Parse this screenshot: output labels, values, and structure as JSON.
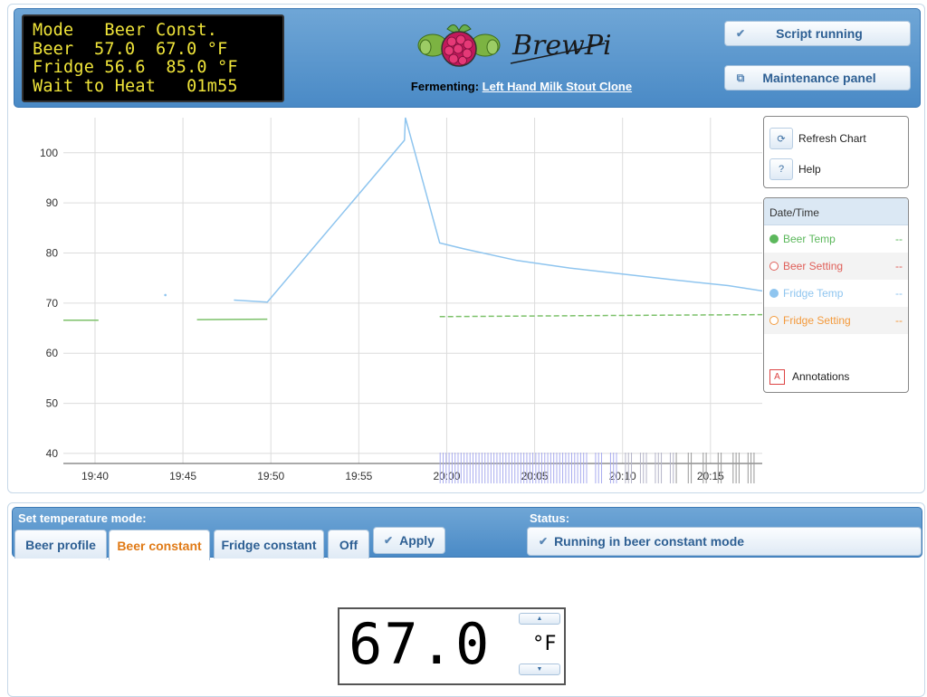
{
  "lcd": {
    "line1": "Mode   Beer Const.",
    "line2": "Beer  57.0  67.0 °F",
    "line3": "Fridge 56.6  85.0 °F",
    "line4": "Wait to Heat   01m55"
  },
  "header": {
    "logo_text": "BrewPi",
    "fermenting_label": "Fermenting:",
    "beer_name": "Left Hand Milk Stout Clone",
    "script_button": "Script running",
    "maintenance_button": "Maintenance panel"
  },
  "chart_controls": {
    "refresh": "Refresh Chart",
    "help": "Help",
    "help_icon": "?"
  },
  "legend": {
    "header": "Date/Time",
    "items": [
      {
        "label": "Beer Temp",
        "value": "--",
        "color": "#5cb85c",
        "filled": true
      },
      {
        "label": "Beer Setting",
        "value": "--",
        "color": "#e0605a",
        "filled": false
      },
      {
        "label": "Fridge Temp",
        "value": "--",
        "color": "#8fc5ef",
        "filled": true
      },
      {
        "label": "Fridge Setting",
        "value": "--",
        "color": "#f39a3c",
        "filled": false
      }
    ],
    "annotations": "Annotations",
    "annotations_icon": "A"
  },
  "chart_data": {
    "type": "line",
    "x_ticks": [
      "19:40",
      "19:45",
      "19:50",
      "19:55",
      "20:00",
      "20:05",
      "20:10",
      "20:15"
    ],
    "y_ticks": [
      40,
      50,
      60,
      70,
      80,
      90,
      100
    ],
    "ylim": [
      38,
      107
    ],
    "xlim_minutes": [
      -1.8,
      38.2
    ],
    "grid": true,
    "series": [
      {
        "name": "Fridge Temp",
        "color": "#8fc5ef",
        "segments": [
          [
            [
              4.0,
              71.6
            ]
          ],
          [
            [
              7.9,
              70.6
            ],
            [
              9.8,
              70.2
            ],
            [
              17.6,
              102.5
            ],
            [
              17.65,
              107
            ],
            [
              19.6,
              82.0
            ],
            [
              21,
              80.8
            ],
            [
              24,
              78.5
            ],
            [
              27,
              77.0
            ],
            [
              30,
              75.8
            ],
            [
              33,
              74.6
            ],
            [
              36,
              73.5
            ],
            [
              38.2,
              72.3
            ]
          ]
        ]
      },
      {
        "name": "Beer Temp",
        "color": "#7cc16a",
        "segments": [
          [
            [
              -1.8,
              66.6
            ],
            [
              0.2,
              66.6
            ]
          ],
          [
            [
              5.8,
              66.7
            ],
            [
              9.8,
              66.8
            ]
          ],
          [
            [
              19.6,
              67.3
            ],
            [
              24,
              67.4
            ],
            [
              28,
              67.5
            ],
            [
              33,
              67.6
            ],
            [
              38.2,
              67.7
            ]
          ]
        ]
      }
    ]
  },
  "control": {
    "set_mode_label": "Set temperature mode:",
    "status_label": "Status:",
    "tabs": [
      "Beer profile",
      "Beer constant",
      "Fridge constant",
      "Off"
    ],
    "apply": "Apply",
    "status_text": "Running in beer constant mode",
    "temperature": "67.0",
    "unit": "°F",
    "spin_up": "▲",
    "spin_down": "▼"
  }
}
